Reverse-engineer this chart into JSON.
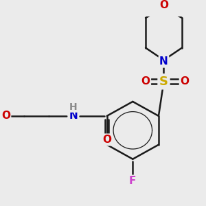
{
  "background_color": "#ebebeb",
  "figsize": [
    3.0,
    3.0
  ],
  "dpi": 100,
  "bond_color": "#1a1a1a",
  "bond_lw": 1.8,
  "colors": {
    "O": "#cc0000",
    "N": "#0000cc",
    "S": "#ccaa00",
    "F": "#cc44cc",
    "H": "#888888",
    "C": "#1a1a1a"
  }
}
